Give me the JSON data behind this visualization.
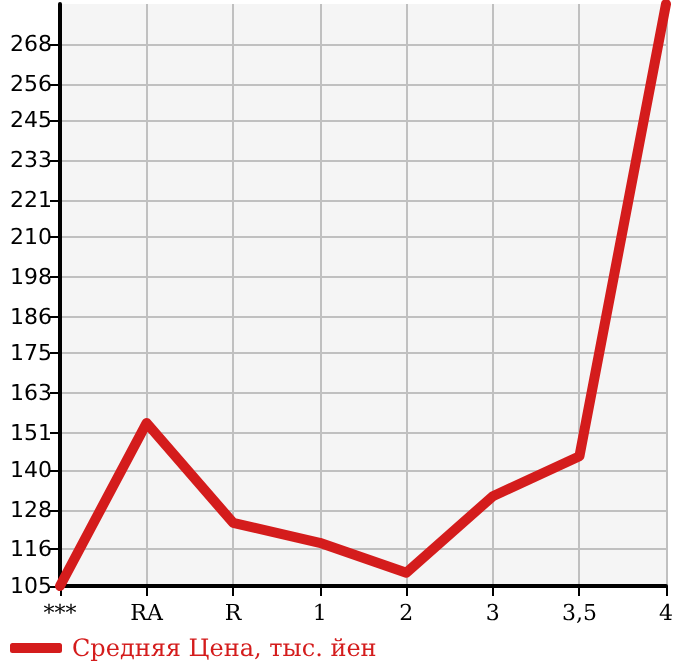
{
  "chart_data": {
    "type": "line",
    "categories": [
      "***",
      "RA",
      "R",
      "1",
      "2",
      "3",
      "3,5",
      "4"
    ],
    "series": [
      {
        "name": "Средняя Цена, тыс. йен",
        "color": "#d41c1c",
        "values": [
          105,
          154,
          124,
          118,
          109,
          132,
          144,
          280
        ]
      }
    ],
    "ylim": [
      105,
      280
    ],
    "yticks": [
      105,
      116,
      128,
      140,
      151,
      163,
      175,
      186,
      198,
      210,
      221,
      233,
      245,
      256,
      268
    ],
    "grid": true,
    "legend": "bottom left",
    "marker": "none",
    "line_style": "solid"
  }
}
